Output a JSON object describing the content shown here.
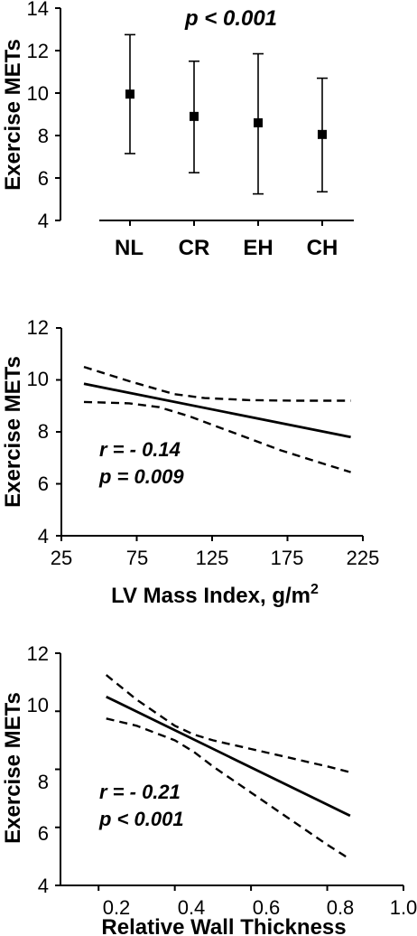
{
  "chart_data": [
    {
      "type": "scatter",
      "variant": "mean-with-error-bars",
      "ylabel": "Exercise METs",
      "xlabel": "",
      "categories": [
        "NL",
        "CR",
        "EH",
        "CH"
      ],
      "ylim": [
        4,
        14
      ],
      "yticks": [
        "4",
        "6",
        "8",
        "10",
        "12",
        "14"
      ],
      "series": [
        {
          "values": [
            9.95,
            8.9,
            8.6,
            8.05
          ],
          "lower": [
            7.15,
            6.25,
            5.25,
            5.35
          ],
          "upper": [
            12.75,
            11.5,
            11.85,
            10.7
          ]
        }
      ],
      "annotations": [
        "p < 0.001"
      ],
      "grid": false
    },
    {
      "type": "line",
      "variant": "regression-with-95ci",
      "ylabel": "Exercise METs",
      "xlabel": "LV Mass Index, g/m",
      "xlabel_sup": "2",
      "xlim": [
        25,
        225
      ],
      "ylim": [
        4,
        12
      ],
      "xticks": [
        "25",
        "75",
        "125",
        "175",
        "225"
      ],
      "yticks": [
        "4",
        "6",
        "8",
        "10",
        "12"
      ],
      "fit": {
        "x": [
          40,
          217
        ],
        "y": [
          9.85,
          7.8
        ]
      },
      "ci_upper": {
        "x": [
          40,
          70,
          100,
          120,
          150,
          180,
          217
        ],
        "y": [
          10.5,
          9.95,
          9.45,
          9.3,
          9.22,
          9.2,
          9.2
        ]
      },
      "ci_lower": {
        "x": [
          40,
          70,
          90,
          110,
          140,
          170,
          200,
          217
        ],
        "y": [
          9.15,
          9.1,
          8.95,
          8.6,
          7.95,
          7.3,
          6.75,
          6.45
        ]
      },
      "annotations": [
        "r = - 0.14",
        "p = 0.009"
      ],
      "grid": false
    },
    {
      "type": "line",
      "variant": "regression-with-95ci",
      "ylabel": "Exercise METs",
      "xlabel": "Relative Wall Thickness",
      "xlim": [
        0.1,
        1.0
      ],
      "ylim": [
        4,
        12
      ],
      "xticks": [
        "0.2",
        "0.4",
        "0.6",
        "0.8",
        "1.0"
      ],
      "yticks": [
        "4",
        "6",
        "8",
        "10",
        "12"
      ],
      "fit": {
        "x": [
          0.22,
          0.86
        ],
        "y": [
          10.5,
          6.4
        ]
      },
      "ci_upper": {
        "x": [
          0.22,
          0.3,
          0.4,
          0.45,
          0.5,
          0.6,
          0.7,
          0.8,
          0.86
        ],
        "y": [
          11.25,
          10.4,
          9.5,
          9.2,
          9.0,
          8.7,
          8.4,
          8.1,
          7.9
        ]
      },
      "ci_lower": {
        "x": [
          0.22,
          0.3,
          0.4,
          0.45,
          0.5,
          0.6,
          0.7,
          0.8,
          0.86
        ],
        "y": [
          9.75,
          9.5,
          9.0,
          8.6,
          8.1,
          7.2,
          6.3,
          5.4,
          4.9
        ]
      },
      "annotations": [
        "r = - 0.21",
        "p < 0.001"
      ],
      "grid": false
    }
  ]
}
